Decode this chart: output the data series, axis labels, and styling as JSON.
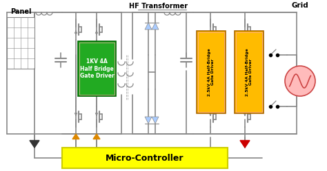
{
  "bg_color": "#ffffff",
  "wire_color": "#888888",
  "panel_label": "Panel",
  "hf_transformer_label": "HF Transformer",
  "gate_driver_1_label": "1KV 4A\nHalf Bridge\nGate Driver",
  "gate_driver_2_label": "2.5kV 4A Half-Bridge\nGate Driver",
  "gate_driver_3_label": "2.5kV 4A Half-Bridge\nGate Driver",
  "micro_controller_label": "Micro-Controller",
  "grid_label": "Grid",
  "gate_driver_1_bg": "#22aa22",
  "gate_driver_23_bg": "#ffbb00",
  "micro_controller_bg": "#ffff00",
  "arrow_orange": "#dd8800",
  "arrow_red": "#cc0000",
  "diode_color": "#aaccff",
  "grid_circle_color": "#ffbbbb",
  "grid_circle_edge": "#cc4444",
  "mc_border": "#cccc00",
  "lw_main": 1.2,
  "lw_sub": 0.9
}
